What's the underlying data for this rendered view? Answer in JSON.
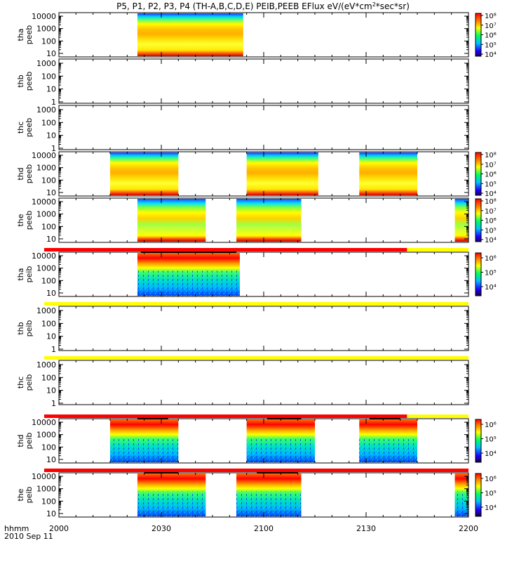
{
  "title": "P5, P1, P2, P3, P4 (TH-A,B,C,D,E) PEIB,PEEB EFlux eV/(eV*cm²*sec*sr)",
  "footer": {
    "time_label": "hhmm",
    "date_label": "2010 Sep 11"
  },
  "chart_data": {
    "type": "heatmap",
    "title": "P5, P1, P2, P3, P4 (TH-A,B,C,D,E) PEIB,PEEB EFlux eV/(eV*cm²*sec*sr)",
    "x_axis": {
      "label": "hhmm",
      "date": "2010 Sep 11",
      "range_hhmm": [
        "2000",
        "2200"
      ],
      "ticks": [
        "2000",
        "2030",
        "2100",
        "2130",
        "2200"
      ]
    },
    "y_scale": "log",
    "colorscale": "rainbow",
    "panels": [
      {
        "probe": "tha",
        "product": "peeb",
        "y_ticks": [
          "10",
          "100",
          "1000",
          "10000"
        ],
        "colorbar_ticks": [
          "10⁴",
          "10⁵",
          "10⁶",
          "10⁷",
          "10⁸"
        ],
        "data_intervals": [
          [
            "2023",
            "2054"
          ]
        ],
        "style": "electron"
      },
      {
        "probe": "thb",
        "product": "peeb",
        "y_ticks": [
          "1",
          "10",
          "100",
          "1000"
        ],
        "colorbar_ticks": [],
        "data_intervals": [],
        "style": "empty"
      },
      {
        "probe": "thc",
        "product": "peeb",
        "y_ticks": [
          "1",
          "10",
          "100",
          "1000"
        ],
        "colorbar_ticks": [],
        "data_intervals": [],
        "style": "empty"
      },
      {
        "probe": "thd",
        "product": "peeb",
        "y_ticks": [
          "10",
          "100",
          "1000",
          "10000"
        ],
        "colorbar_ticks": [
          "10⁴",
          "10⁵",
          "10⁶",
          "10⁷",
          "10⁸"
        ],
        "data_intervals": [
          [
            "2015",
            "2035"
          ],
          [
            "2055",
            "2116"
          ],
          [
            "2128",
            "2145"
          ]
        ],
        "style": "electron"
      },
      {
        "probe": "the",
        "product": "peeb",
        "y_ticks": [
          "10",
          "100",
          "1000",
          "10000"
        ],
        "colorbar_ticks": [
          "10⁴",
          "10⁵",
          "10⁶",
          "10⁷",
          "10⁸"
        ],
        "data_intervals": [
          [
            "2023",
            "2043"
          ],
          [
            "2052",
            "2111"
          ],
          [
            "2156",
            "2200"
          ]
        ],
        "style": "electron"
      },
      {
        "probe": "tha",
        "product": "peib",
        "y_ticks": [
          "10",
          "100",
          "1000",
          "10000"
        ],
        "colorbar_ticks": [
          "10⁴",
          "10⁵",
          "10⁶"
        ],
        "data_intervals": [
          [
            "2023",
            "2053"
          ]
        ],
        "style": "ion"
      },
      {
        "probe": "thb",
        "product": "peib",
        "y_ticks": [
          "1",
          "10",
          "100",
          "1000"
        ],
        "colorbar_ticks": [],
        "data_intervals": [],
        "style": "empty"
      },
      {
        "probe": "thc",
        "product": "peib",
        "y_ticks": [
          "1",
          "10",
          "100",
          "1000"
        ],
        "colorbar_ticks": [],
        "data_intervals": [],
        "style": "empty"
      },
      {
        "probe": "thd",
        "product": "peib",
        "y_ticks": [
          "10",
          "100",
          "1000",
          "10000"
        ],
        "colorbar_ticks": [
          "10⁴",
          "10⁵",
          "10⁶"
        ],
        "data_intervals": [
          [
            "2015",
            "2035"
          ],
          [
            "2055",
            "2115"
          ],
          [
            "2128",
            "2145"
          ]
        ],
        "style": "ion"
      },
      {
        "probe": "the",
        "product": "peib",
        "y_ticks": [
          "10",
          "100",
          "1000",
          "10000"
        ],
        "colorbar_ticks": [
          "10⁴",
          "10⁵",
          "10⁶"
        ],
        "data_intervals": [
          [
            "2023",
            "2043"
          ],
          [
            "2052",
            "2111"
          ],
          [
            "2156",
            "2200"
          ]
        ],
        "style": "ion"
      }
    ],
    "mode_bars": [
      {
        "above_panel": 6,
        "segments": [
          {
            "from": "2000",
            "to": "2142",
            "color": "#ff0000"
          },
          {
            "from": "2142",
            "to": "2200",
            "color": "#ffff00"
          }
        ]
      },
      {
        "above_panel": 7,
        "segments": [
          {
            "from": "2000",
            "to": "2200",
            "color": "#ffff00"
          }
        ]
      },
      {
        "above_panel": 8,
        "segments": [
          {
            "from": "2000",
            "to": "2200",
            "color": "#ffff00"
          }
        ]
      },
      {
        "above_panel": 9,
        "segments": [
          {
            "from": "2000",
            "to": "2142",
            "color": "#ff0000"
          },
          {
            "from": "2142",
            "to": "2200",
            "color": "#ffff00"
          }
        ]
      },
      {
        "above_panel": 10,
        "segments": [
          {
            "from": "2000",
            "to": "2200",
            "color": "#ff0000"
          }
        ]
      }
    ],
    "ion_black_bars": [
      {
        "panel": 6,
        "intervals": [
          [
            "2024",
            "2052"
          ]
        ]
      },
      {
        "panel": 9,
        "intervals": [
          [
            "2023",
            "2032"
          ],
          [
            "2101",
            "2111"
          ],
          [
            "2131",
            "2140"
          ]
        ]
      },
      {
        "panel": 10,
        "intervals": [
          [
            "2025",
            "2035"
          ],
          [
            "2058",
            "2110"
          ]
        ]
      }
    ]
  }
}
